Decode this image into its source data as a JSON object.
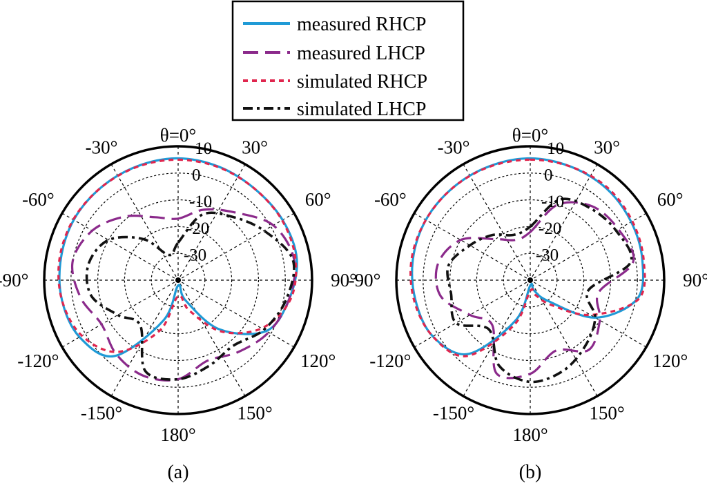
{
  "legend": {
    "items": [
      {
        "label": "measured RHCP",
        "color": "#1f9ad6",
        "style": "solid"
      },
      {
        "label": "measured LHCP",
        "color": "#8b2a8b",
        "style": "dashed"
      },
      {
        "label": "simulated RHCP",
        "color": "#e0264e",
        "style": "dotted"
      },
      {
        "label": "simulated LHCP",
        "color": "#111111",
        "style": "dashdot"
      }
    ]
  },
  "chart_data": [
    {
      "type": "polar",
      "caption": "(a)",
      "theta_label_prefix": "θ=",
      "angle_labels": [
        "θ=0°",
        "30°",
        "60°",
        "90°",
        "120°",
        "150°",
        "180°",
        "-150°",
        "-120°",
        "-90°",
        "-60°",
        "-30°"
      ],
      "radial_tick_labels": [
        "10",
        "0",
        "-10",
        "-20",
        "-30"
      ],
      "rlim": [
        -40,
        10
      ],
      "theta_deg": [
        0,
        20,
        40,
        60,
        80,
        100,
        120,
        140,
        160,
        180,
        200,
        220,
        240,
        260,
        280,
        300,
        320,
        340
      ],
      "series": [
        {
          "name": "measured RHCP",
          "values": [
            5.5,
            5.0,
            4.5,
            5.0,
            5.0,
            2.0,
            -2.0,
            -16.0,
            -32.0,
            -38.0,
            -24.0,
            -3.0,
            2.5,
            4.0,
            4.5,
            5.0,
            5.0,
            5.2
          ]
        },
        {
          "name": "measured LHCP",
          "values": [
            -17.0,
            -12.0,
            -7.0,
            1.0,
            4.0,
            2.0,
            -1.0,
            -5.0,
            -8.0,
            -3.0,
            -2.0,
            -4.0,
            -7.0,
            -3.0,
            0.0,
            -3.0,
            -9.0,
            -15.0
          ]
        },
        {
          "name": "simulated RHCP",
          "values": [
            5.0,
            4.8,
            4.5,
            4.8,
            4.5,
            2.5,
            -4.0,
            -15.0,
            -28.0,
            -34.0,
            -20.0,
            -5.0,
            1.5,
            4.0,
            5.0,
            5.2,
            5.0,
            5.0
          ]
        },
        {
          "name": "simulated LHCP",
          "values": [
            -26.0,
            -14.0,
            -9.0,
            -3.0,
            3.5,
            1.0,
            -3.0,
            -8.0,
            -6.0,
            -3.0,
            -4.0,
            -18.0,
            -14.0,
            -7.0,
            -6.0,
            -10.0,
            -20.0,
            -30.0
          ]
        }
      ]
    },
    {
      "type": "polar",
      "caption": "(b)",
      "theta_label_prefix": "θ=",
      "angle_labels": [
        "θ=0°",
        "30°",
        "60°",
        "90°",
        "120°",
        "150°",
        "180°",
        "-150°",
        "-120°",
        "-90°",
        "-60°",
        "-30°"
      ],
      "radial_tick_labels": [
        "10",
        "0",
        "-10",
        "-20",
        "-30"
      ],
      "rlim": [
        -40,
        10
      ],
      "theta_deg": [
        0,
        20,
        40,
        60,
        80,
        100,
        120,
        140,
        160,
        180,
        200,
        220,
        240,
        260,
        280,
        300,
        320,
        340
      ],
      "series": [
        {
          "name": "measured RHCP",
          "values": [
            5.5,
            5.0,
            4.5,
            3.5,
            2.5,
            0.5,
            -12.0,
            -30.0,
            -36.0,
            -38.0,
            -24.0,
            -4.0,
            2.0,
            3.5,
            4.5,
            5.0,
            5.0,
            5.2
          ]
        },
        {
          "name": "measured LHCP",
          "values": [
            -22.0,
            -10.0,
            -4.0,
            -2.0,
            -1.0,
            -14.0,
            -10.0,
            -6.0,
            -12.0,
            -5.0,
            -3.0,
            -18.0,
            -14.0,
            -6.0,
            -5.0,
            -10.0,
            -20.0,
            -24.0
          ]
        },
        {
          "name": "simulated RHCP",
          "values": [
            5.0,
            5.0,
            5.0,
            4.0,
            3.0,
            1.0,
            -14.0,
            -28.0,
            -34.0,
            -36.0,
            -22.0,
            -3.0,
            2.0,
            4.0,
            5.0,
            5.0,
            5.0,
            5.0
          ]
        },
        {
          "name": "simulated LHCP",
          "values": [
            -20.0,
            -8.0,
            -5.0,
            -3.0,
            -2.0,
            -18.0,
            -12.0,
            -8.0,
            -4.0,
            -2.0,
            -6.0,
            -16.0,
            -8.0,
            -10.0,
            -9.0,
            -14.0,
            -18.0,
            -22.0
          ]
        }
      ]
    }
  ]
}
